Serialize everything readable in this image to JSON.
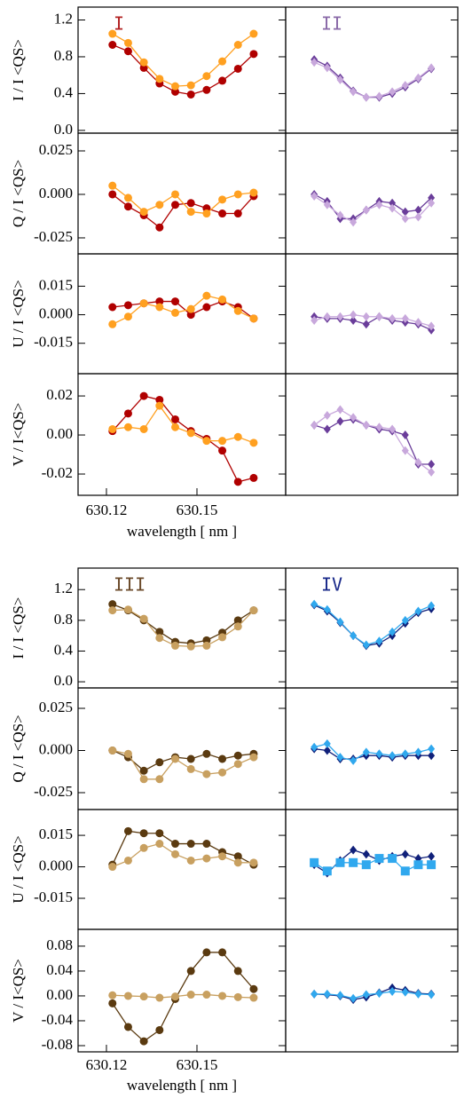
{
  "chart_data": [
    {
      "type": "line",
      "x": [
        630.122,
        630.1272,
        630.1324,
        630.1376,
        630.1428,
        630.148,
        630.1532,
        630.1584,
        630.1636,
        630.1688
      ],
      "xlim": [
        630.1106,
        630.1794
      ],
      "xticks": [
        630.12,
        630.15
      ],
      "xlabel": "wavelength [ nm ]",
      "rows": [
        {
          "ylabel": "I / I <QS>",
          "ylim": [
            -0.03,
            1.34
          ],
          "yticks": [
            {
              "value": 0,
              "label": "0.0"
            },
            0.4,
            0.8,
            1.2
          ],
          "panels": [
            {
              "label": "I",
              "label_color": "#b22222",
              "series": [
                {
                  "color": "#b00000",
                  "marker": "circle",
                  "values": [
                    0.93,
                    0.86,
                    0.68,
                    0.51,
                    0.42,
                    0.39,
                    0.44,
                    0.54,
                    0.67,
                    0.83
                  ]
                },
                {
                  "color": "#ffa020",
                  "marker": "circle",
                  "values": [
                    1.05,
                    0.95,
                    0.74,
                    0.56,
                    0.48,
                    0.49,
                    0.59,
                    0.75,
                    0.93,
                    1.05
                  ]
                }
              ]
            },
            {
              "label": "II",
              "label_color": "#8a6aa8",
              "series": [
                {
                  "color": "#6a3d9a",
                  "marker": "diamond",
                  "values": [
                    0.77,
                    0.7,
                    0.57,
                    0.43,
                    0.36,
                    0.36,
                    0.4,
                    0.47,
                    0.56,
                    0.67
                  ]
                },
                {
                  "color": "#c8a8dc",
                  "marker": "diamond",
                  "values": [
                    0.74,
                    0.68,
                    0.55,
                    0.42,
                    0.36,
                    0.37,
                    0.42,
                    0.49,
                    0.57,
                    0.68
                  ]
                }
              ]
            }
          ]
        },
        {
          "ylabel": "Q / I <QS>",
          "ylim": [
            -0.0342,
            0.0352
          ],
          "yticks": [
            -0.025,
            {
              "value": 0,
              "label": "0.000"
            },
            0.025
          ],
          "panels": [
            {
              "series": [
                {
                  "color": "#b00000",
                  "marker": "circle",
                  "values": [
                    0.0,
                    -0.007,
                    -0.012,
                    -0.019,
                    -0.006,
                    -0.005,
                    -0.008,
                    -0.011,
                    -0.011,
                    -0.001
                  ]
                },
                {
                  "color": "#ffa020",
                  "marker": "circle",
                  "values": [
                    0.005,
                    -0.002,
                    -0.01,
                    -0.006,
                    0.0,
                    -0.01,
                    -0.011,
                    -0.003,
                    0.0,
                    0.001
                  ]
                }
              ]
            },
            {
              "series": [
                {
                  "color": "#6a3d9a",
                  "marker": "diamond",
                  "values": [
                    0.0,
                    -0.004,
                    -0.014,
                    -0.014,
                    -0.009,
                    -0.004,
                    -0.005,
                    -0.01,
                    -0.009,
                    -0.002
                  ]
                },
                {
                  "color": "#c8a8dc",
                  "marker": "diamond",
                  "values": [
                    -0.001,
                    -0.006,
                    -0.012,
                    -0.016,
                    -0.009,
                    -0.006,
                    -0.008,
                    -0.014,
                    -0.013,
                    -0.005
                  ]
                }
              ]
            }
          ]
        },
        {
          "ylabel": "U / I <QS>",
          "ylim": [
            -0.031,
            0.032
          ],
          "yticks": [
            -0.015,
            {
              "value": 0,
              "label": "0.000"
            },
            0.015
          ],
          "panels": [
            {
              "series": [
                {
                  "color": "#b00000",
                  "marker": "circle",
                  "values": [
                    0.004,
                    0.005,
                    0.006,
                    0.007,
                    0.007,
                    0.0,
                    0.004,
                    0.007,
                    0.004,
                    -0.002
                  ]
                },
                {
                  "color": "#ffa020",
                  "marker": "circle",
                  "values": [
                    -0.005,
                    -0.001,
                    0.006,
                    0.004,
                    0.001,
                    0.003,
                    0.01,
                    0.008,
                    0.002,
                    -0.002
                  ]
                }
              ]
            },
            {
              "series": [
                {
                  "color": "#6a3d9a",
                  "marker": "diamond",
                  "values": [
                    -0.001,
                    -0.002,
                    -0.002,
                    -0.003,
                    -0.005,
                    -0.001,
                    -0.003,
                    -0.004,
                    -0.005,
                    -0.008
                  ]
                },
                {
                  "color": "#c8a8dc",
                  "marker": "diamond",
                  "values": [
                    -0.003,
                    -0.001,
                    -0.001,
                    0.0,
                    -0.001,
                    -0.001,
                    -0.002,
                    -0.002,
                    -0.004,
                    -0.006
                  ]
                }
              ]
            }
          ]
        },
        {
          "ylabel": "V / I<QS>",
          "ylim": [
            -0.0309,
            0.0314
          ],
          "yticks": [
            -0.02,
            {
              "value": 0,
              "label": "0.00"
            },
            0.02
          ],
          "panels": [
            {
              "series": [
                {
                  "color": "#b00000",
                  "marker": "circle",
                  "values": [
                    0.002,
                    0.011,
                    0.02,
                    0.018,
                    0.008,
                    0.002,
                    -0.002,
                    -0.008,
                    -0.024,
                    -0.022
                  ]
                },
                {
                  "color": "#ffa020",
                  "marker": "circle",
                  "values": [
                    0.003,
                    0.004,
                    0.003,
                    0.015,
                    0.004,
                    0.001,
                    -0.003,
                    -0.003,
                    -0.001,
                    -0.004
                  ]
                }
              ]
            },
            {
              "series": [
                {
                  "color": "#6a3d9a",
                  "marker": "diamond",
                  "values": [
                    0.005,
                    0.003,
                    0.007,
                    0.008,
                    0.005,
                    0.003,
                    0.002,
                    0.0,
                    -0.015,
                    -0.015
                  ]
                },
                {
                  "color": "#c8a8dc",
                  "marker": "diamond",
                  "values": [
                    0.005,
                    0.01,
                    0.013,
                    0.009,
                    0.005,
                    0.004,
                    0.003,
                    -0.008,
                    -0.014,
                    -0.019
                  ]
                }
              ]
            }
          ]
        }
      ]
    },
    {
      "type": "line",
      "x": [
        630.122,
        630.1272,
        630.1324,
        630.1376,
        630.1428,
        630.148,
        630.1532,
        630.1584,
        630.1636,
        630.1688
      ],
      "xlim": [
        630.1106,
        630.1794
      ],
      "xticks": [
        630.12,
        630.15
      ],
      "xlabel": "wavelength [ nm ]",
      "rows": [
        {
          "ylabel": "I / I <QS>",
          "ylim": [
            -0.08,
            1.48
          ],
          "yticks": [
            {
              "value": 0,
              "label": "0.0"
            },
            0.4,
            0.8,
            1.2
          ],
          "panels": [
            {
              "label": "III",
              "label_color": "#6b4a2a",
              "series": [
                {
                  "color": "#5a3a10",
                  "marker": "circle",
                  "values": [
                    1.01,
                    0.93,
                    0.8,
                    0.65,
                    0.52,
                    0.5,
                    0.54,
                    0.64,
                    0.8,
                    0.93
                  ]
                },
                {
                  "color": "#c8a060",
                  "marker": "circle",
                  "values": [
                    0.93,
                    0.94,
                    0.82,
                    0.57,
                    0.47,
                    0.46,
                    0.47,
                    0.58,
                    0.72,
                    0.93
                  ]
                }
              ]
            },
            {
              "label": "IV",
              "label_color": "#1a2a8a",
              "series": [
                {
                  "color": "#10207a",
                  "marker": "diamond",
                  "values": [
                    1.0,
                    0.92,
                    0.77,
                    0.6,
                    0.47,
                    0.5,
                    0.6,
                    0.76,
                    0.9,
                    0.95
                  ]
                },
                {
                  "color": "#30a8ee",
                  "marker": "diamond",
                  "values": [
                    1.01,
                    0.94,
                    0.78,
                    0.6,
                    0.48,
                    0.53,
                    0.65,
                    0.8,
                    0.92,
                    0.99
                  ]
                }
              ]
            }
          ]
        },
        {
          "ylabel": "Q / I <QS>",
          "ylim": [
            -0.035,
            0.0371
          ],
          "yticks": [
            -0.025,
            {
              "value": 0,
              "label": "0.000"
            },
            0.025
          ],
          "panels": [
            {
              "series": [
                {
                  "color": "#5a3a10",
                  "marker": "circle",
                  "values": [
                    0.0,
                    -0.004,
                    -0.012,
                    -0.007,
                    -0.004,
                    -0.005,
                    -0.002,
                    -0.005,
                    -0.003,
                    -0.002
                  ]
                },
                {
                  "color": "#c8a060",
                  "marker": "circle",
                  "values": [
                    0.0,
                    -0.002,
                    -0.017,
                    -0.017,
                    -0.005,
                    -0.011,
                    -0.014,
                    -0.013,
                    -0.008,
                    -0.004
                  ]
                }
              ]
            },
            {
              "series": [
                {
                  "color": "#10207a",
                  "marker": "diamond",
                  "values": [
                    0.001,
                    0.0,
                    -0.005,
                    -0.005,
                    -0.003,
                    -0.003,
                    -0.004,
                    -0.003,
                    -0.003,
                    -0.003
                  ]
                },
                {
                  "color": "#30a8ee",
                  "marker": "diamond",
                  "values": [
                    0.002,
                    0.004,
                    -0.004,
                    -0.006,
                    -0.001,
                    -0.002,
                    -0.003,
                    -0.002,
                    -0.001,
                    0.001
                  ]
                }
              ]
            }
          ]
        },
        {
          "ylabel": "U / I <QS>",
          "ylim": [
            -0.0298,
            0.0273
          ],
          "yticks": [
            -0.015,
            {
              "value": 0,
              "label": "0.000"
            },
            0.015
          ],
          "panels": [
            {
              "series": [
                {
                  "color": "#5a3a10",
                  "marker": "circle",
                  "values": [
                    0.001,
                    0.017,
                    0.016,
                    0.016,
                    0.011,
                    0.011,
                    0.011,
                    0.007,
                    0.005,
                    0.001
                  ]
                },
                {
                  "color": "#c8a060",
                  "marker": "circle",
                  "values": [
                    0.0,
                    0.003,
                    0.009,
                    0.011,
                    0.006,
                    0.003,
                    0.004,
                    0.005,
                    0.002,
                    0.002
                  ]
                }
              ]
            },
            {
              "series": [
                {
                  "color": "#10207a",
                  "marker": "diamond",
                  "values": [
                    0.001,
                    -0.003,
                    0.003,
                    0.008,
                    0.006,
                    0.003,
                    0.005,
                    0.006,
                    0.004,
                    0.005
                  ]
                },
                {
                  "color": "#30a8ee",
                  "marker": "square",
                  "values": [
                    0.002,
                    -0.002,
                    0.002,
                    0.002,
                    0.001,
                    0.004,
                    0.004,
                    -0.002,
                    0.001,
                    0.001
                  ]
                }
              ]
            }
          ]
        },
        {
          "ylabel": "V / I<QS>",
          "ylim": [
            -0.09,
            0.107
          ],
          "yticks": [
            -0.08,
            -0.04,
            {
              "value": 0,
              "label": "0.00"
            },
            0.04,
            0.08
          ],
          "panels": [
            {
              "series": [
                {
                  "color": "#5a3a10",
                  "marker": "circle",
                  "values": [
                    -0.012,
                    -0.05,
                    -0.073,
                    -0.055,
                    -0.005,
                    0.04,
                    0.07,
                    0.07,
                    0.04,
                    0.011
                  ]
                },
                {
                  "color": "#c8a060",
                  "marker": "circle",
                  "values": [
                    0.001,
                    0.0,
                    -0.001,
                    -0.003,
                    -0.001,
                    0.002,
                    0.002,
                    0.0,
                    -0.002,
                    -0.003
                  ]
                }
              ]
            },
            {
              "series": [
                {
                  "color": "#10207a",
                  "marker": "diamond",
                  "values": [
                    0.003,
                    0.002,
                    0.0,
                    -0.006,
                    -0.002,
                    0.005,
                    0.013,
                    0.009,
                    0.004,
                    0.003
                  ]
                },
                {
                  "color": "#30a8ee",
                  "marker": "diamond",
                  "values": [
                    0.003,
                    0.003,
                    0.001,
                    -0.004,
                    0.002,
                    0.004,
                    0.007,
                    0.006,
                    0.003,
                    0.002
                  ]
                }
              ]
            }
          ]
        }
      ]
    }
  ]
}
